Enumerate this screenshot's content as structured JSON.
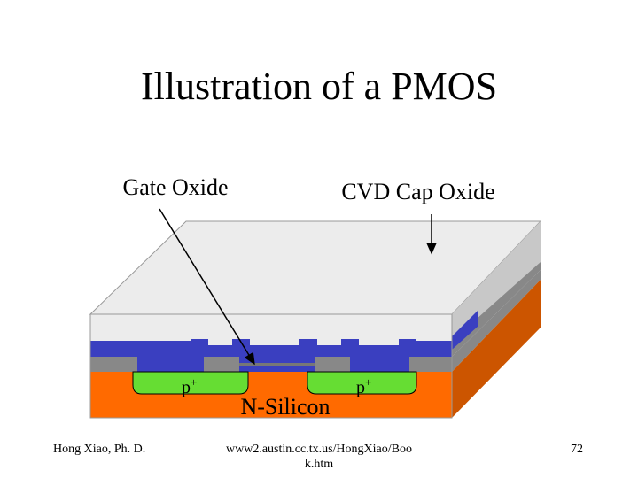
{
  "title": "Illustration of a PMOS",
  "labels": {
    "gate_oxide": "Gate Oxide",
    "cvd_cap_oxide": "CVD Cap Oxide",
    "substrate": "N-Silicon",
    "source": {
      "base": "p",
      "sup": "+"
    },
    "drain": {
      "base": "p",
      "sup": "+"
    }
  },
  "footer": {
    "author": "Hong Xiao, Ph. D.",
    "url_line1": "www2.austin.cc.tx.us/HongXiao/Boo",
    "url_line2": "k.htm",
    "page": "72"
  }
}
